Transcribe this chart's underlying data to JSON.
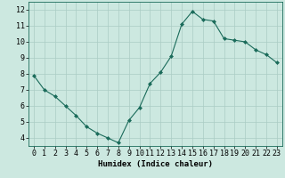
{
  "x": [
    0,
    1,
    2,
    3,
    4,
    5,
    6,
    7,
    8,
    9,
    10,
    11,
    12,
    13,
    14,
    15,
    16,
    17,
    18,
    19,
    20,
    21,
    22,
    23
  ],
  "y": [
    7.9,
    7.0,
    6.6,
    6.0,
    5.4,
    4.7,
    4.3,
    4.0,
    3.7,
    5.1,
    5.9,
    7.4,
    8.1,
    9.1,
    11.1,
    11.9,
    11.4,
    11.3,
    10.2,
    10.1,
    10.0,
    9.5,
    9.2,
    8.7
  ],
  "line_color": "#1a6b5a",
  "marker": "D",
  "marker_size": 2.0,
  "bg_color": "#cce8e0",
  "grid_color": "#aaccc4",
  "xlabel": "Humidex (Indice chaleur)",
  "xlim": [
    -0.5,
    23.5
  ],
  "ylim": [
    3.5,
    12.5
  ],
  "yticks": [
    4,
    5,
    6,
    7,
    8,
    9,
    10,
    11,
    12
  ],
  "xticks": [
    0,
    1,
    2,
    3,
    4,
    5,
    6,
    7,
    8,
    9,
    10,
    11,
    12,
    13,
    14,
    15,
    16,
    17,
    18,
    19,
    20,
    21,
    22,
    23
  ],
  "xlabel_fontsize": 6.5,
  "tick_fontsize": 6.0,
  "line_width": 0.8
}
